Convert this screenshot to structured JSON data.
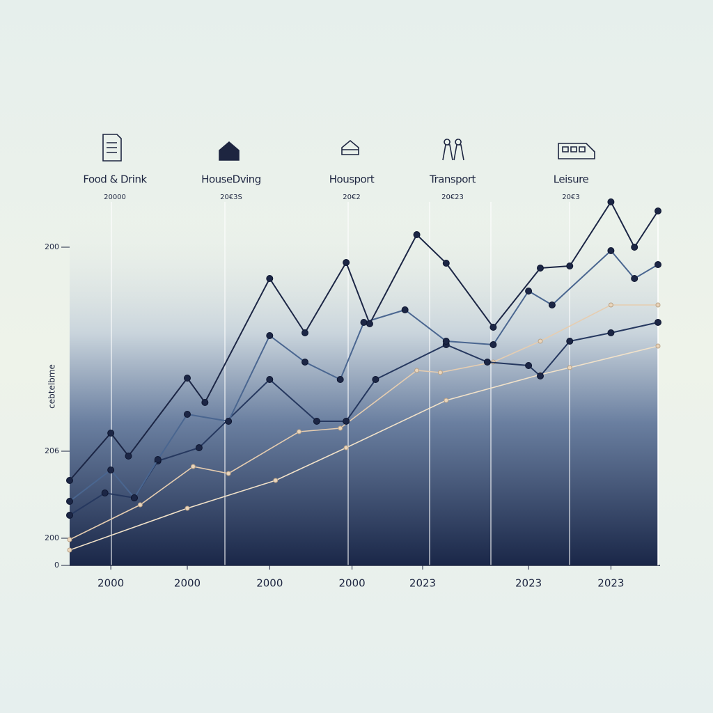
{
  "chart_data": {
    "type": "line",
    "headers": [
      {
        "text": "Food & Drink",
        "subtext": "20000"
      },
      {
        "text": "HouseDving",
        "subtext": "20€3S"
      },
      {
        "text": "Housport",
        "subtext": "20€2"
      },
      {
        "text": "Transport",
        "subtext": "20€23"
      },
      {
        "text": "Leisure",
        "subtext": "20€3"
      }
    ],
    "ylabel": "cebtelbme",
    "xlim": [
      0,
      100
    ],
    "xticks": [
      {
        "value": 7,
        "label": "2000"
      },
      {
        "value": 20,
        "label": "2000"
      },
      {
        "value": 34,
        "label": "2000"
      },
      {
        "value": 48,
        "label": "2000"
      },
      {
        "value": 60,
        "label": "2023"
      },
      {
        "value": 78,
        "label": "2023"
      },
      {
        "value": 92,
        "label": "2023"
      }
    ],
    "ylim": [
      0,
      530
    ],
    "yticks": [
      {
        "value": 457,
        "label": "200"
      },
      {
        "value": 164,
        "label": "206"
      },
      {
        "value": 39,
        "label": "200"
      },
      0
    ],
    "series": [
      {
        "color": "#1c2645",
        "x": [
          0,
          7,
          10,
          20,
          23,
          34,
          40,
          47,
          51,
          59,
          64,
          72,
          80,
          85,
          92,
          96,
          100
        ],
        "values": [
          122,
          190,
          157,
          269,
          234,
          412,
          334,
          435,
          347,
          475,
          434,
          342,
          427,
          430,
          522,
          457,
          509
        ]
      },
      {
        "color": "#4a6690",
        "x": [
          0,
          7,
          11,
          15,
          20,
          27,
          34,
          40,
          46,
          50,
          57,
          64,
          72,
          78,
          82,
          92,
          96,
          100
        ],
        "values": [
          92,
          137,
          97,
          152,
          217,
          207,
          330,
          292,
          267,
          349,
          367,
          322,
          317,
          394,
          374,
          452,
          412,
          432
        ]
      },
      {
        "color": "#26385f",
        "x": [
          0,
          6,
          11,
          15,
          22,
          34,
          42,
          47,
          52,
          64,
          71,
          78,
          80,
          85,
          92,
          100
        ],
        "values": [
          72,
          104,
          97,
          150,
          169,
          267,
          207,
          207,
          267,
          317,
          292,
          287,
          272,
          322,
          334,
          349
        ]
      },
      {
        "color": "#e6cdb0",
        "x": [
          0,
          12,
          21,
          27,
          39,
          46,
          59,
          63,
          72,
          80,
          92,
          100
        ],
        "values": [
          37,
          87,
          142,
          132,
          192,
          197,
          280,
          277,
          292,
          322,
          374,
          374
        ]
      },
      {
        "color": "#f2e2c9",
        "x": [
          0,
          20,
          35,
          47,
          64,
          80,
          85,
          100
        ],
        "values": [
          22,
          82,
          122,
          169,
          237,
          274,
          284,
          315
        ]
      }
    ]
  }
}
